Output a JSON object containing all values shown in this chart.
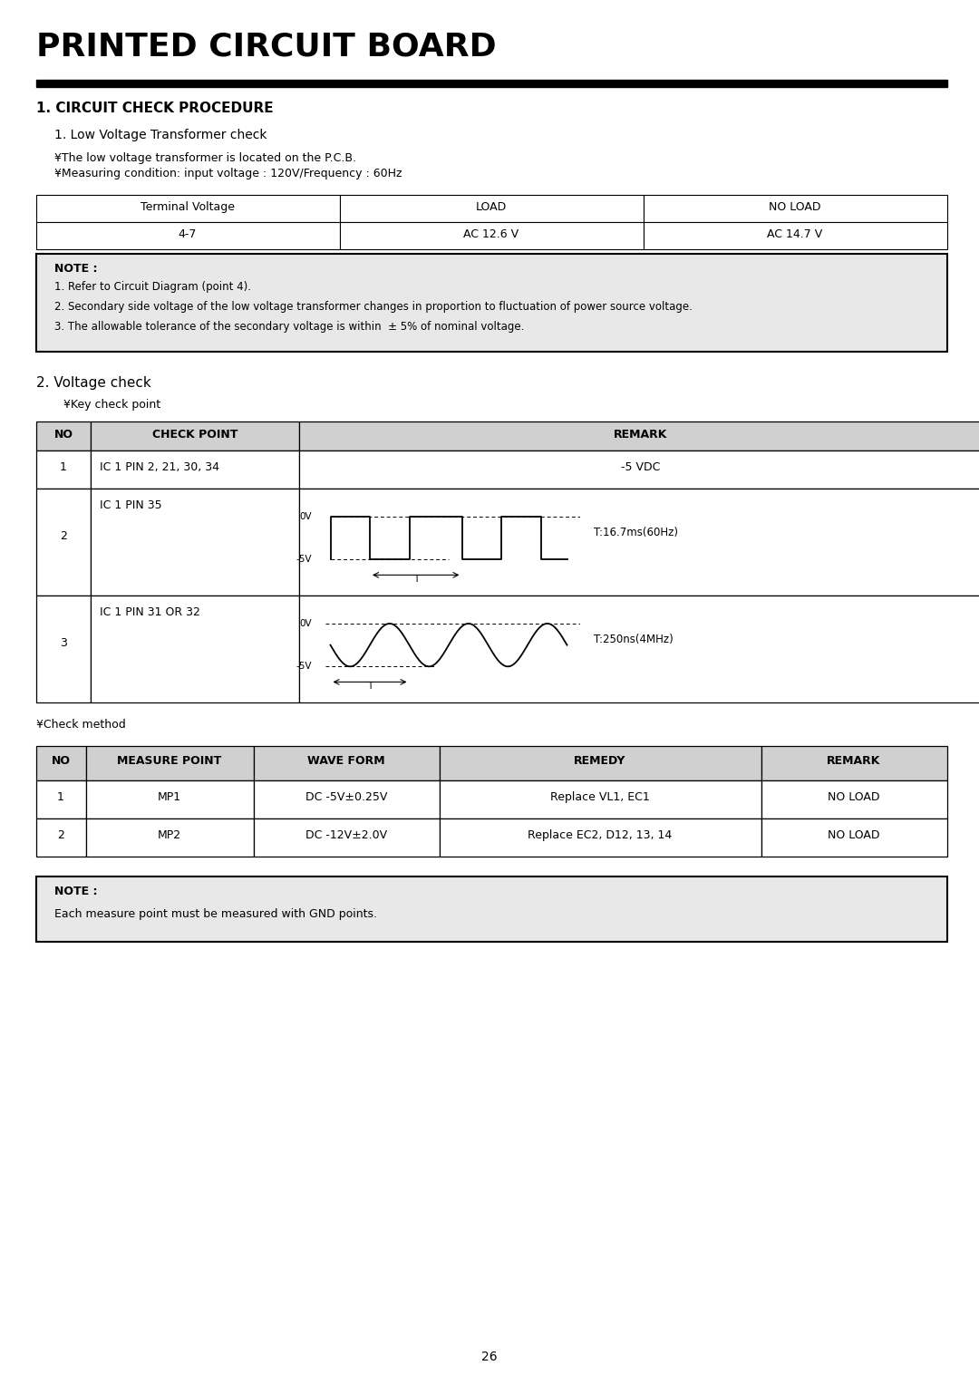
{
  "title": "PRINTED CIRCUIT BOARD",
  "section1_title": "1. CIRCUIT CHECK PROCEDURE",
  "subsection1_title": "1. Low Voltage Transformer check",
  "sub1_bullet1": "¥The low voltage transformer is located on the P.C.B.",
  "sub1_bullet2": "¥Measuring condition: input voltage : 120V/Frequency : 60Hz",
  "table1_headers": [
    "Terminal Voltage",
    "LOAD",
    "NO LOAD"
  ],
  "table1_rows": [
    [
      "4-7",
      "AC 12.6 V",
      "AC 14.7 V"
    ]
  ],
  "note1_title": "NOTE :",
  "note1_lines": [
    "1. Refer to Circuit Diagram (point 4).",
    "2. Secondary side voltage of the low voltage transformer changes in proportion to fluctuation of power source voltage.",
    "3. The allowable tolerance of the secondary voltage is within  ± 5% of nominal voltage."
  ],
  "subsection2_title": "2. Voltage check",
  "sub2_bullet": "¥Key check point",
  "table2_headers": [
    "NO",
    "CHECK POINT",
    "REMARK"
  ],
  "wave1_label_0v": "0V",
  "wave1_label_m5v": "-5V",
  "wave1_time_label": "T:16.7ms(60Hz)",
  "wave2_label_0v": "0V",
  "wave2_label_m5v": "-5V",
  "wave2_time_label": "T:250ns(4MHz)",
  "check_method_bullet": "¥Check method",
  "table3_headers": [
    "NO",
    "MEASURE POINT",
    "WAVE FORM",
    "REMEDY",
    "REMARK"
  ],
  "table3_rows": [
    [
      "1",
      "MP1",
      "DC -5V±0.25V",
      "Replace VL1, EC1",
      "NO LOAD"
    ],
    [
      "2",
      "MP2",
      "DC -12V±2.0V",
      "Replace EC2, D12, 13, 14",
      "NO LOAD"
    ]
  ],
  "note2_title": "NOTE :",
  "note2_lines": [
    "Each measure point must be measured with GND points."
  ],
  "page_number": "26",
  "bg_color": "#ffffff",
  "table_header_bg": "#d0d0d0",
  "note_bg": "#e8e8e8",
  "border_color": "#000000"
}
